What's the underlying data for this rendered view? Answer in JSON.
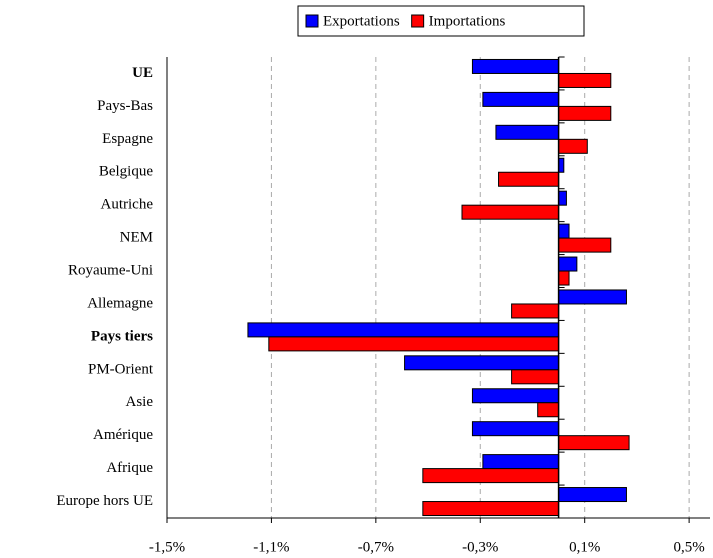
{
  "chart_data": {
    "type": "hbar",
    "categories": [
      "UE",
      "Pays-Bas",
      "Espagne",
      "Belgique",
      "Autriche",
      "NEM",
      "Royaume-Uni",
      "Allemagne",
      "Pays tiers",
      "PM-Orient",
      "Asie",
      "Amérique",
      "Afrique",
      "Europe hors UE"
    ],
    "bold": [
      0,
      8
    ],
    "series": [
      {
        "name": "Exportations",
        "color": "#0000ff",
        "values": [
          -0.33,
          -0.29,
          -0.24,
          0.02,
          0.03,
          0.04,
          0.07,
          0.26,
          -1.19,
          -0.59,
          -0.33,
          -0.33,
          -0.29,
          0.26
        ]
      },
      {
        "name": "Importations",
        "color": "#ff0000",
        "values": [
          0.2,
          0.2,
          0.11,
          -0.23,
          -0.37,
          0.2,
          0.04,
          -0.18,
          -1.11,
          -0.18,
          -0.08,
          0.27,
          -0.52,
          -0.52
        ]
      }
    ],
    "xlim": [
      -1.5,
      0.58
    ],
    "xticks": [
      {
        "value": -1.5,
        "label": "-1,5%"
      },
      {
        "value": -1.1,
        "label": "-1,1%"
      },
      {
        "value": -0.7,
        "label": "-0,7%"
      },
      {
        "value": -0.3,
        "label": "-0,3%"
      },
      {
        "value": 0.1,
        "label": "0,1%"
      },
      {
        "value": 0.5,
        "label": "0,5%"
      }
    ],
    "grid": true,
    "legend": "top"
  }
}
